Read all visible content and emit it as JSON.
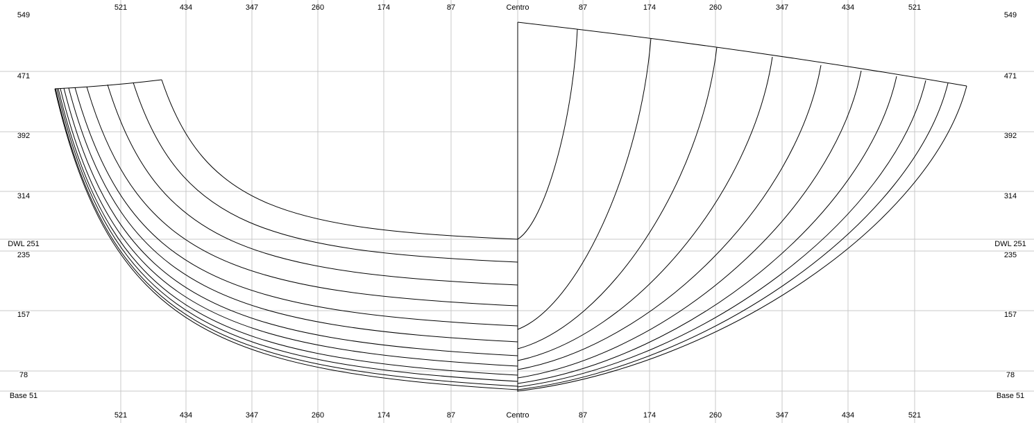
{
  "top_axis": {
    "labels": [
      "521",
      "434",
      "347",
      "260",
      "174",
      "87",
      "Centro",
      "87",
      "174",
      "260",
      "347",
      "434",
      "521"
    ]
  },
  "bottom_axis": {
    "labels": [
      "521",
      "434",
      "347",
      "260",
      "174",
      "87",
      "Centro",
      "87",
      "174",
      "260",
      "347",
      "434",
      "521"
    ]
  },
  "left_axis": {
    "labels": [
      "549",
      "471",
      "392",
      "314",
      "DWL 251",
      "235",
      "157",
      "78",
      "Base 51"
    ]
  },
  "right_axis": {
    "labels": [
      "549",
      "471",
      "392",
      "314",
      "DWL 251",
      "235",
      "157",
      "78",
      "Base 51"
    ]
  }
}
